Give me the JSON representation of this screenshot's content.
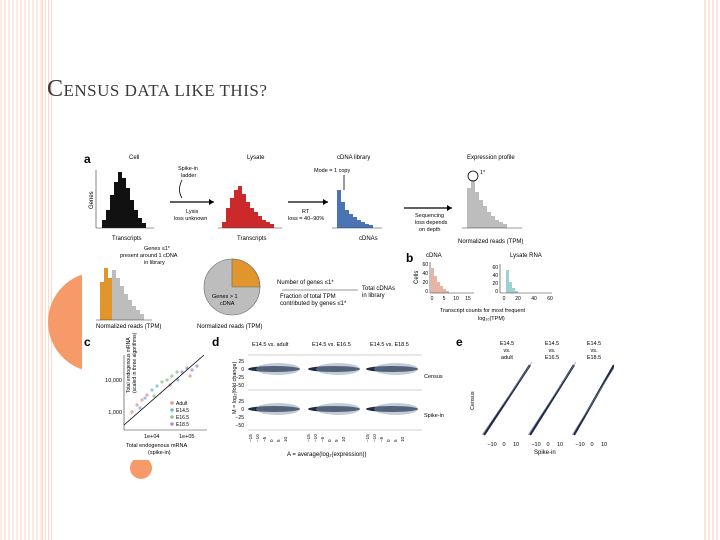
{
  "slide": {
    "title_first": "C",
    "title_rest": "ENSUS DATA LIKE THIS?"
  },
  "figure": {
    "panel_a": {
      "letter": "a",
      "cell": "Cell",
      "lysate": "Lysate",
      "cdna_library": "cDNA library",
      "expression_profile": "Expression profile",
      "spike_in": [
        "Spike-in",
        "ladder"
      ],
      "genes_axis": "Genes",
      "lysis": [
        "Lysis",
        "loss unknown"
      ],
      "mode": "Mode = 1 copy",
      "rt": [
        "RT",
        "loss = 40–90%"
      ],
      "sequencing": [
        "Sequencing",
        "loss depends",
        "on depth"
      ],
      "transcripts_1": "Transcripts",
      "transcripts_2": "Transcripts",
      "cdnas": "cDNAs",
      "normalized_reads_tpm": "Normalized reads (TPM)",
      "star": "1*",
      "genes_le1": [
        "Genes ≤1*",
        "present around 1 cDNA",
        "in library"
      ],
      "pie_genes_gt1": [
        "Genes > 1",
        "cDNA"
      ],
      "legend_num_genes": "Number of genes ≤1*",
      "legend_frac": [
        "Fraction of total TPM",
        "contributed by genes ≤1*"
      ],
      "legend_total": [
        "Total cDNAs",
        "in library"
      ],
      "bottom_normalized_1": "Normalized reads (TPM)",
      "bottom_normalized_2": "Normalized reads (TPM)"
    },
    "panel_b": {
      "letter": "b",
      "cdna": "cDNA",
      "lysate_rna": "Lysate RNA",
      "cells_axis": "Cells",
      "y_ticks_left": [
        "60",
        "40",
        "20",
        "0"
      ],
      "x_ticks_left": [
        "0",
        "5",
        "10",
        "15"
      ],
      "y_ticks_right": [
        "60",
        "40",
        "20",
        "0"
      ],
      "x_ticks_right": [
        "0",
        "20",
        "40",
        "60"
      ],
      "xlabel": [
        "Transcript counts for most frequent",
        "log₁₀(TPM)"
      ]
    },
    "panel_c": {
      "letter": "c",
      "ylabel": [
        "Total endogenous mRNA",
        "(scaled in three algorithms)"
      ],
      "y_ticks": [
        "10,000",
        "1,000"
      ],
      "x_ticks": [
        "1e+04",
        "1e+05"
      ],
      "xlabel": [
        "Total endogenous mRNA",
        "(spike-in)"
      ],
      "legend": [
        "Adult",
        "E14.5",
        "E16.5",
        "E18.5"
      ]
    },
    "panel_d": {
      "letter": "d",
      "cols": [
        "E14.5 vs. adult",
        "E14.5 vs. E16.5",
        "E14.5 vs. E18.5"
      ],
      "ylabel": "M = log₂(fold change)",
      "y_ticks": [
        "25",
        "0",
        "−25",
        "−50"
      ],
      "row_census": "Census",
      "row_spike": "Spike-in",
      "x_ticks": [
        "−15",
        "−10",
        "−5",
        "0",
        "5",
        "10"
      ],
      "xlabel": "A = average(log₂(expression))"
    },
    "panel_e": {
      "letter": "e",
      "cols": [
        [
          "E14.5",
          "vs.",
          "adult"
        ],
        [
          "E14.5",
          "vs.",
          "E16.5"
        ],
        [
          "E14.5",
          "vs.",
          "E18.5"
        ]
      ],
      "ylabel": "Census",
      "x_ticks": [
        "−10",
        "0",
        "10"
      ],
      "xlabel": "Spike-in"
    }
  },
  "colors": {
    "accent": "#f79a6a",
    "black_hist": "#111111",
    "red_hist": "#cc2a2a",
    "blue_hist": "#4a74b4",
    "gray_hist": "#bdbdbd",
    "orange_hist": "#e0962c"
  }
}
